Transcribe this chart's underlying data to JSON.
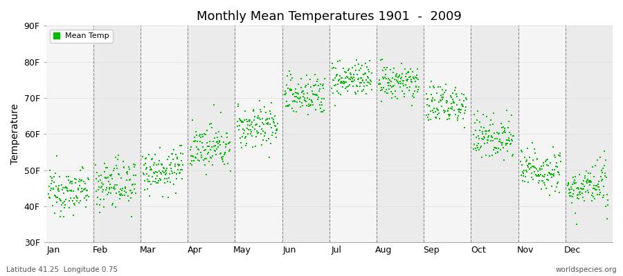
{
  "title": "Monthly Mean Temperatures 1901  -  2009",
  "ylabel": "Temperature",
  "xlabel_bottom_left": "Latitude 41.25  Longitude 0.75",
  "xlabel_bottom_right": "worldspecies.org",
  "ylim": [
    30,
    90
  ],
  "yticks": [
    30,
    40,
    50,
    60,
    70,
    80,
    90
  ],
  "ytick_labels": [
    "30F",
    "40F",
    "50F",
    "60F",
    "70F",
    "80F",
    "90F"
  ],
  "months": [
    "Jan",
    "Feb",
    "Mar",
    "Apr",
    "May",
    "Jun",
    "Jul",
    "Aug",
    "Sep",
    "Oct",
    "Nov",
    "Dec"
  ],
  "marker_color": "#00bb00",
  "marker_size": 4,
  "background_color": "#ffffff",
  "band_color_light": "#f0f0f0",
  "band_color_dark": "#e0e0e0",
  "legend_label": "Mean Temp",
  "start_year": 1901,
  "end_year": 2009,
  "monthly_means_F": [
    44.0,
    46.0,
    50.0,
    56.0,
    62.0,
    70.5,
    75.0,
    74.0,
    68.0,
    59.0,
    50.0,
    45.0
  ],
  "monthly_stds_F": [
    3.0,
    3.5,
    3.0,
    3.0,
    3.0,
    3.0,
    2.5,
    2.5,
    3.0,
    3.0,
    3.0,
    3.0
  ]
}
